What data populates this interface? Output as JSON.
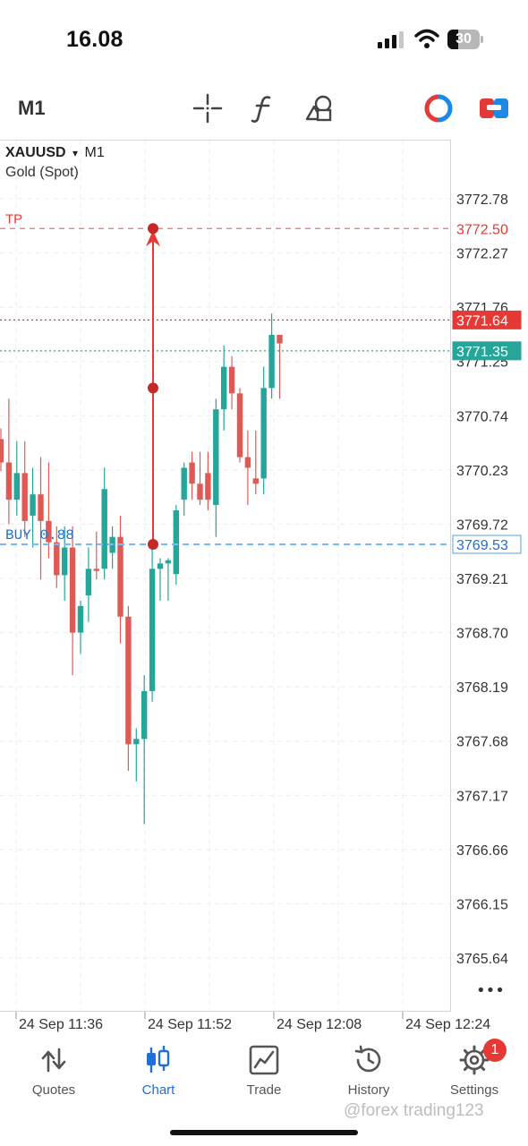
{
  "status_bar": {
    "time": "16.08",
    "battery": "30"
  },
  "toolbar": {
    "timeframe": "M1",
    "icons": [
      "crosshair-icon",
      "indicators-icon",
      "objects-icon",
      "one-click-trading-icon",
      "trade-panel-icon"
    ]
  },
  "chart": {
    "symbol": "XAUUSD",
    "dropdown_arrow": "▾",
    "timeframe": "M1",
    "symbol_name": "Gold (Spot)",
    "tp_label": "TP",
    "buy_label": "BUY 0.88",
    "more_label": "•••",
    "price_markers": {
      "tp": "3772.50",
      "ask": "3771.64",
      "bid": "3771.35",
      "buy": "3769.53"
    },
    "colors": {
      "bull": "#26a69a",
      "bear": "#e05a55",
      "tp_line": "#e57373",
      "ask_line": "#e53935",
      "bid_line": "#26a69a",
      "buy_line": "#7ab8f5"
    }
  },
  "chart_data": {
    "type": "candlestick",
    "price_axis_ticks": [
      "3772.78",
      "3772.27",
      "3771.76",
      "3771.25",
      "3770.74",
      "3770.23",
      "3769.72",
      "3769.21",
      "3768.70",
      "3768.19",
      "3767.68",
      "3767.17",
      "3766.66",
      "3766.15",
      "3765.64"
    ],
    "time_axis_ticks": [
      "24 Sep 11:36",
      "24 Sep 11:52",
      "24 Sep 12:08",
      "24 Sep 12:24"
    ],
    "ylim": [
      3765.4,
      3773.2
    ],
    "levels": {
      "take_profit": 3772.5,
      "ask": 3771.64,
      "bid": 3771.35,
      "buy_entry": 3769.53
    },
    "candles": [
      {
        "o": 3770.52,
        "h": 3770.62,
        "l": 3770.22,
        "c": 3770.3
      },
      {
        "o": 3770.3,
        "h": 3770.9,
        "l": 3769.72,
        "c": 3769.95
      },
      {
        "o": 3769.95,
        "h": 3770.5,
        "l": 3769.8,
        "c": 3770.2
      },
      {
        "o": 3770.2,
        "h": 3770.5,
        "l": 3769.6,
        "c": 3769.75
      },
      {
        "o": 3769.8,
        "h": 3770.25,
        "l": 3769.5,
        "c": 3770.0
      },
      {
        "o": 3770.0,
        "h": 3770.35,
        "l": 3769.2,
        "c": 3769.75
      },
      {
        "o": 3769.75,
        "h": 3770.3,
        "l": 3769.4,
        "c": 3769.55
      },
      {
        "o": 3769.55,
        "h": 3769.7,
        "l": 3769.12,
        "c": 3769.24
      },
      {
        "o": 3769.24,
        "h": 3769.7,
        "l": 3769.0,
        "c": 3769.5
      },
      {
        "o": 3769.5,
        "h": 3769.7,
        "l": 3768.3,
        "c": 3768.7
      },
      {
        "o": 3768.7,
        "h": 3769.0,
        "l": 3768.5,
        "c": 3768.95
      },
      {
        "o": 3769.05,
        "h": 3769.5,
        "l": 3768.8,
        "c": 3769.3
      },
      {
        "o": 3769.3,
        "h": 3769.65,
        "l": 3769.2,
        "c": 3769.28
      },
      {
        "o": 3769.3,
        "h": 3770.25,
        "l": 3769.2,
        "c": 3770.05
      },
      {
        "o": 3769.45,
        "h": 3769.7,
        "l": 3769.3,
        "c": 3769.6
      },
      {
        "o": 3769.6,
        "h": 3769.8,
        "l": 3768.6,
        "c": 3768.85
      },
      {
        "o": 3768.85,
        "h": 3768.95,
        "l": 3767.4,
        "c": 3767.65
      },
      {
        "o": 3767.65,
        "h": 3767.8,
        "l": 3767.3,
        "c": 3767.7
      },
      {
        "o": 3767.7,
        "h": 3768.3,
        "l": 3766.9,
        "c": 3768.15
      },
      {
        "o": 3768.15,
        "h": 3769.5,
        "l": 3768.05,
        "c": 3769.3
      },
      {
        "o": 3769.3,
        "h": 3769.4,
        "l": 3769.0,
        "c": 3769.35
      },
      {
        "o": 3769.35,
        "h": 3769.4,
        "l": 3769.0,
        "c": 3769.38
      },
      {
        "o": 3769.25,
        "h": 3769.9,
        "l": 3769.15,
        "c": 3769.85
      },
      {
        "o": 3769.95,
        "h": 3770.3,
        "l": 3769.8,
        "c": 3770.25
      },
      {
        "o": 3770.3,
        "h": 3770.4,
        "l": 3769.95,
        "c": 3770.1
      },
      {
        "o": 3770.1,
        "h": 3770.4,
        "l": 3769.9,
        "c": 3769.95
      },
      {
        "o": 3770.2,
        "h": 3770.4,
        "l": 3769.85,
        "c": 3769.95
      },
      {
        "o": 3769.9,
        "h": 3770.9,
        "l": 3769.6,
        "c": 3770.8
      },
      {
        "o": 3770.8,
        "h": 3771.4,
        "l": 3770.6,
        "c": 3771.2
      },
      {
        "o": 3771.2,
        "h": 3771.3,
        "l": 3770.8,
        "c": 3770.95
      },
      {
        "o": 3770.95,
        "h": 3771.0,
        "l": 3770.3,
        "c": 3770.35
      },
      {
        "o": 3770.35,
        "h": 3770.6,
        "l": 3769.9,
        "c": 3770.25
      },
      {
        "o": 3770.15,
        "h": 3770.6,
        "l": 3770.0,
        "c": 3770.1
      },
      {
        "o": 3770.15,
        "h": 3771.2,
        "l": 3770.0,
        "c": 3771.0
      },
      {
        "o": 3771.0,
        "h": 3771.7,
        "l": 3770.9,
        "c": 3771.5
      },
      {
        "o": 3771.5,
        "h": 3771.5,
        "l": 3770.9,
        "c": 3771.42
      }
    ],
    "trade_arrow": {
      "from_price": 3769.53,
      "mid_price": 3771.0,
      "to_price": 3772.5
    }
  },
  "bottom_nav": {
    "items": [
      {
        "label": "Quotes",
        "icon": "quotes-arrows-icon",
        "active": false
      },
      {
        "label": "Chart",
        "icon": "candlestick-chart-icon",
        "active": true
      },
      {
        "label": "Trade",
        "icon": "trade-chart-icon",
        "active": false
      },
      {
        "label": "History",
        "icon": "history-clock-icon",
        "active": false
      },
      {
        "label": "Settings",
        "icon": "settings-gear-icon",
        "active": false
      }
    ],
    "settings_badge": "1"
  },
  "watermark": "@forex trading123"
}
